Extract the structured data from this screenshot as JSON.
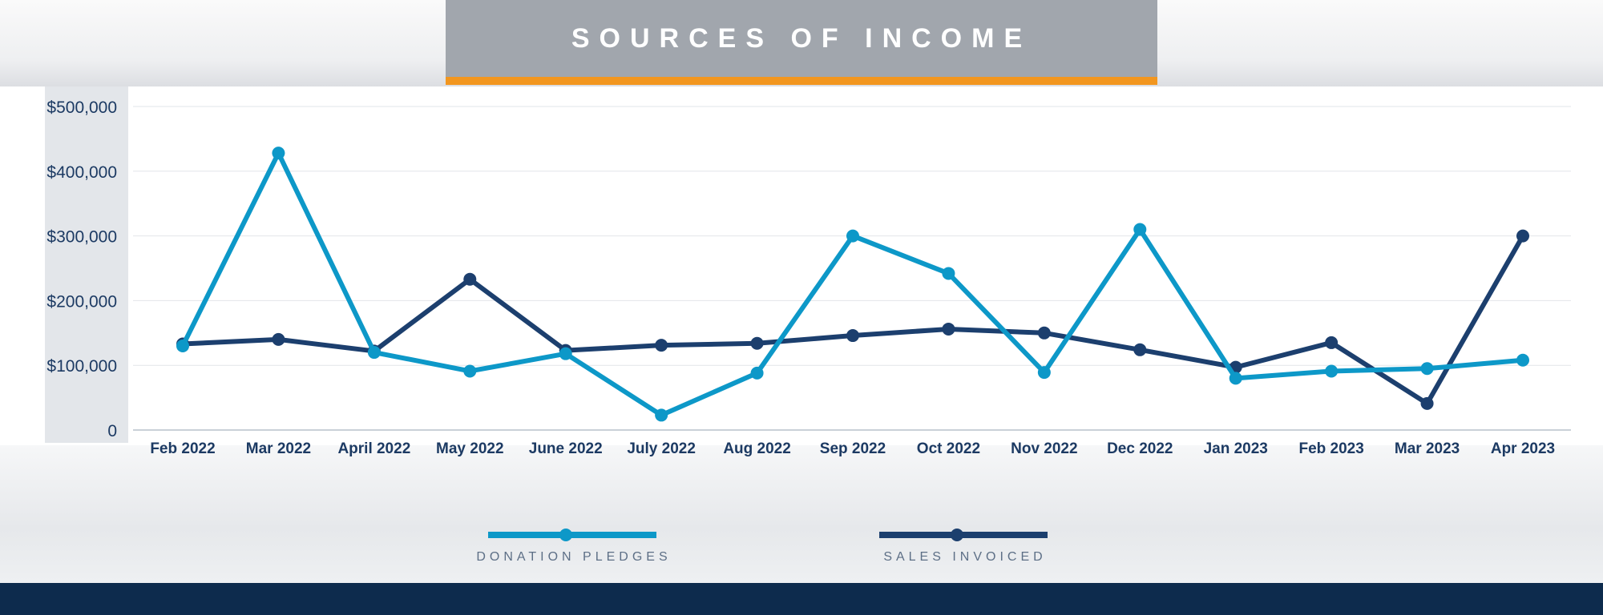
{
  "title": "SOURCES OF INCOME",
  "colors": {
    "donation": "#0d98c8",
    "sales": "#1c3f6e",
    "accent": "#f2961f",
    "title_bg": "#a1a6ad",
    "footer": "#0d2b4d"
  },
  "chart_data": {
    "type": "line",
    "title": "SOURCES OF INCOME",
    "categories": [
      "Feb 2022",
      "Mar 2022",
      "April 2022",
      "May 2022",
      "June 2022",
      "July 2022",
      "Aug 2022",
      "Sep 2022",
      "Oct 2022",
      "Nov 2022",
      "Dec 2022",
      "Jan 2023",
      "Feb 2023",
      "Mar 2023",
      "Apr 2023"
    ],
    "y_ticks": [
      0,
      100000,
      200000,
      300000,
      400000,
      500000
    ],
    "y_tick_labels": [
      "0",
      "$100,000",
      "$200,000",
      "$300,000",
      "$400,000",
      "$500,000"
    ],
    "ylim": [
      0,
      500000
    ],
    "grid": true,
    "legend_position": "bottom",
    "series": [
      {
        "name": "DONATION PLEDGES",
        "color": "#0d98c8",
        "values": [
          130000,
          428000,
          120000,
          91000,
          118000,
          23000,
          88000,
          300000,
          242000,
          89000,
          310000,
          80000,
          91000,
          95000,
          108000
        ]
      },
      {
        "name": "SALES INVOICED",
        "color": "#1c3f6e",
        "values": [
          133000,
          140000,
          122000,
          233000,
          123000,
          131000,
          134000,
          146000,
          156000,
          150000,
          124000,
          97000,
          135000,
          41000,
          300000
        ]
      }
    ]
  }
}
